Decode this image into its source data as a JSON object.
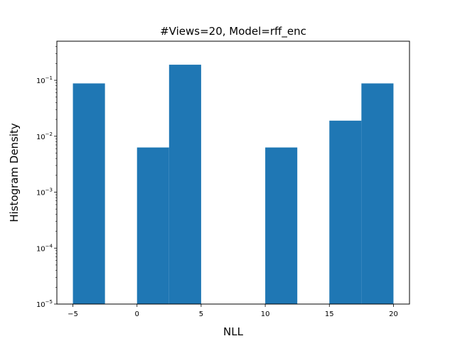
{
  "chart_data": {
    "type": "bar",
    "title": "#Views=20, Model=rff_enc",
    "xlabel": "NLL",
    "ylabel": "Histogram Density",
    "xlim": [
      -6.25,
      21.25
    ],
    "ylim": [
      1e-05,
      0.5
    ],
    "yscale": "log",
    "grid": false,
    "legend": "none",
    "bar_color": "#1f77b4",
    "bins": [
      {
        "x0": -5.0,
        "x1": -2.5,
        "value": 0.088
      },
      {
        "x0": -2.5,
        "x1": 0.0,
        "value": 0
      },
      {
        "x0": 0.0,
        "x1": 2.5,
        "value": 0.0063
      },
      {
        "x0": 2.5,
        "x1": 5.0,
        "value": 0.19
      },
      {
        "x0": 5.0,
        "x1": 7.5,
        "value": 0
      },
      {
        "x0": 7.5,
        "x1": 10.0,
        "value": 0
      },
      {
        "x0": 10.0,
        "x1": 12.5,
        "value": 0.0063
      },
      {
        "x0": 12.5,
        "x1": 15.0,
        "value": 0
      },
      {
        "x0": 15.0,
        "x1": 17.5,
        "value": 0.019
      },
      {
        "x0": 17.5,
        "x1": 20.0,
        "value": 0.088
      }
    ],
    "xticks": [
      {
        "value": -5,
        "label": "−5"
      },
      {
        "value": 0,
        "label": "0"
      },
      {
        "value": 5,
        "label": "5"
      },
      {
        "value": 10,
        "label": "10"
      },
      {
        "value": 15,
        "label": "15"
      },
      {
        "value": 20,
        "label": "20"
      }
    ],
    "yticks": [
      {
        "value": 1e-05,
        "base": "10",
        "exp": "−5"
      },
      {
        "value": 0.0001,
        "base": "10",
        "exp": "−4"
      },
      {
        "value": 0.001,
        "base": "10",
        "exp": "−3"
      },
      {
        "value": 0.01,
        "base": "10",
        "exp": "−2"
      },
      {
        "value": 0.1,
        "base": "10",
        "exp": "−1"
      }
    ]
  }
}
